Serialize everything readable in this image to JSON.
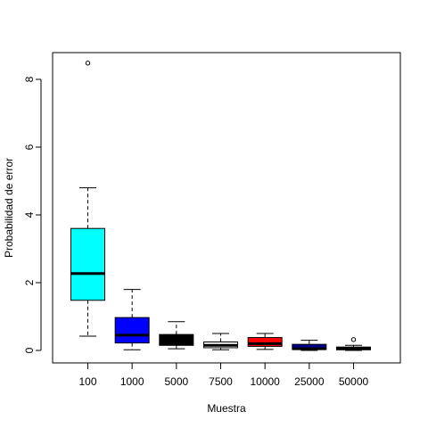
{
  "chart_data": {
    "type": "boxplot",
    "title": "",
    "xlabel": "Muestra",
    "ylabel": "Probabilidad de error",
    "ylim": [
      0,
      8.8
    ],
    "y_ticks": [
      0,
      2,
      4,
      6,
      8
    ],
    "categories": [
      "100",
      "1000",
      "5000",
      "7500",
      "10000",
      "25000",
      "50000"
    ],
    "boxes": [
      {
        "label": "100",
        "whisker_low": 0.42,
        "q1": 1.48,
        "median": 2.27,
        "q3": 3.6,
        "whisker_high": 4.8,
        "outliers": [
          8.48
        ],
        "color": "#00ffff"
      },
      {
        "label": "1000",
        "whisker_low": 0.02,
        "q1": 0.22,
        "median": 0.45,
        "q3": 0.97,
        "whisker_high": 1.8,
        "outliers": [],
        "color": "#0000ff"
      },
      {
        "label": "5000",
        "whisker_low": 0.05,
        "q1": 0.15,
        "median": 0.28,
        "q3": 0.47,
        "whisker_high": 0.85,
        "outliers": [],
        "color": "#000000"
      },
      {
        "label": "7500",
        "whisker_low": 0.02,
        "q1": 0.08,
        "median": 0.15,
        "q3": 0.25,
        "whisker_high": 0.5,
        "outliers": [],
        "color": "#ffffff"
      },
      {
        "label": "10000",
        "whisker_low": 0.03,
        "q1": 0.12,
        "median": 0.2,
        "q3": 0.38,
        "whisker_high": 0.5,
        "outliers": [],
        "color": "#ff0000"
      },
      {
        "label": "25000",
        "whisker_low": 0.0,
        "q1": 0.03,
        "median": 0.05,
        "q3": 0.18,
        "whisker_high": 0.3,
        "outliers": [],
        "color": "#00008b"
      },
      {
        "label": "50000",
        "whisker_low": 0.0,
        "q1": 0.02,
        "median": 0.05,
        "q3": 0.1,
        "whisker_high": 0.15,
        "outliers": [
          0.32
        ],
        "color": "#000000"
      }
    ],
    "median_color": "#000000",
    "frame": true,
    "grid": false
  }
}
